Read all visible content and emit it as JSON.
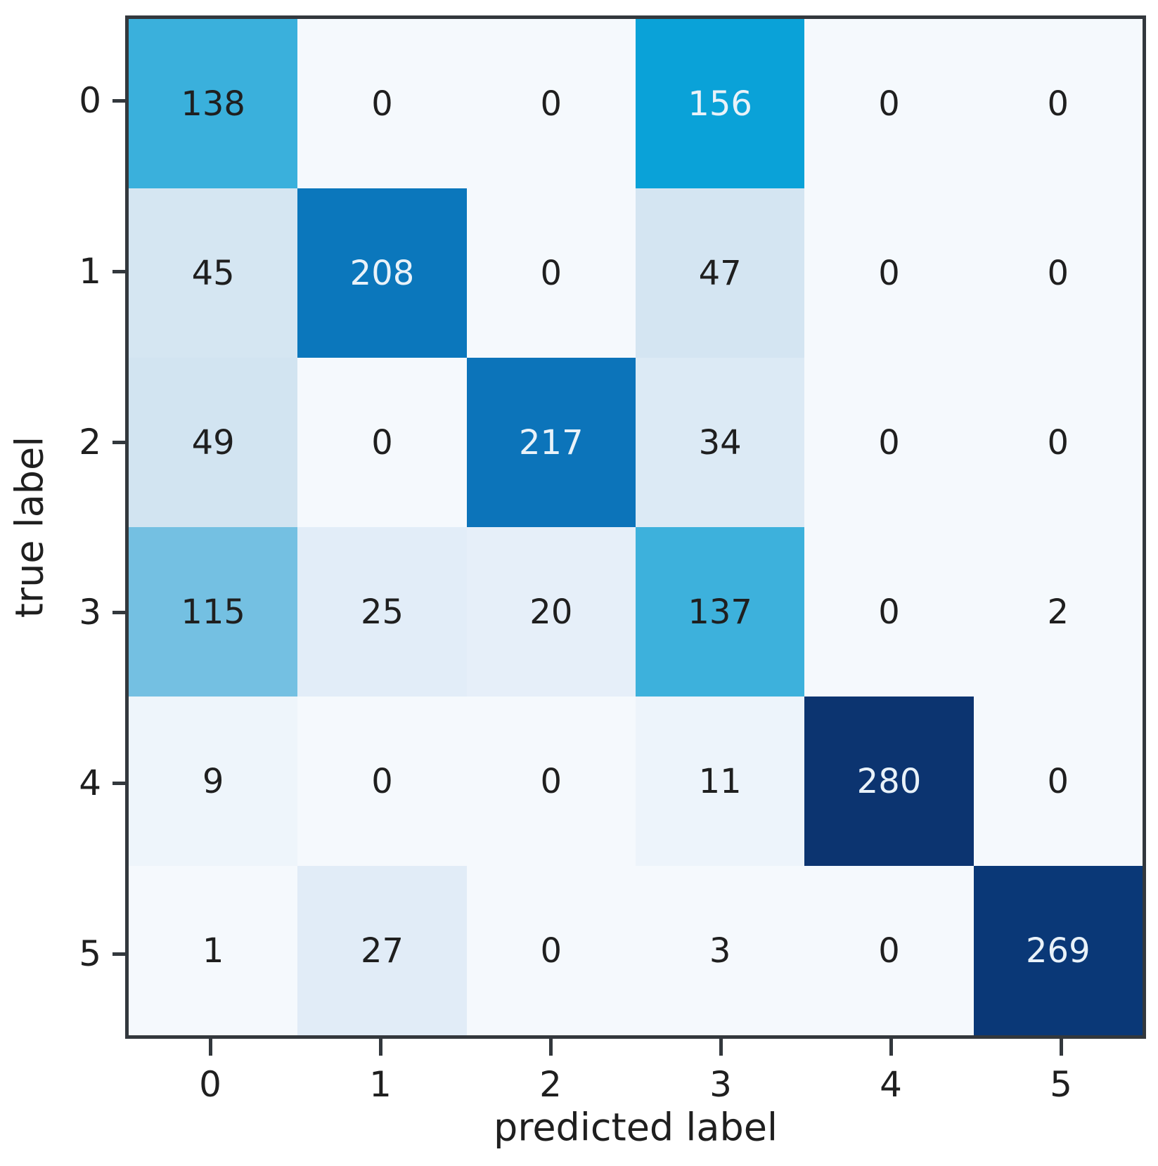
{
  "chart_data": {
    "type": "heatmap",
    "subtype": "confusion-matrix",
    "title": "",
    "xlabel": "predicted label",
    "ylabel": "true label",
    "x_tick_labels": [
      "0",
      "1",
      "2",
      "3",
      "4",
      "5"
    ],
    "y_tick_labels": [
      "0",
      "1",
      "2",
      "3",
      "4",
      "5"
    ],
    "matrix": [
      [
        138,
        0,
        0,
        156,
        0,
        0
      ],
      [
        45,
        208,
        0,
        47,
        0,
        0
      ],
      [
        49,
        0,
        217,
        34,
        0,
        0
      ],
      [
        115,
        25,
        20,
        137,
        0,
        2
      ],
      [
        9,
        0,
        0,
        11,
        280,
        0
      ],
      [
        1,
        27,
        0,
        3,
        0,
        269
      ]
    ],
    "cell_colors": [
      [
        "#3ab0dc",
        "#f5f9fd",
        "#f5f9fd",
        "#0aa2d8",
        "#f5f9fd",
        "#f5f9fd"
      ],
      [
        "#d5e6f2",
        "#0b77bc",
        "#f5f9fd",
        "#d4e5f2",
        "#f5f9fd",
        "#f5f9fd"
      ],
      [
        "#d2e4f1",
        "#f5f9fd",
        "#0c74ba",
        "#dceaf5",
        "#f5f9fd",
        "#f5f9fd"
      ],
      [
        "#74c0e2",
        "#e2edf8",
        "#e6eff9",
        "#3db1dc",
        "#f5f9fd",
        "#f5f9fd"
      ],
      [
        "#eef5fb",
        "#f5f9fd",
        "#f5f9fd",
        "#edf4fb",
        "#0c3470",
        "#f5f9fd"
      ],
      [
        "#f5f9fd",
        "#e1ecf7",
        "#f5f9fd",
        "#f5f9fd",
        "#f5f9fd",
        "#0a3877"
      ]
    ],
    "value_range": [
      0,
      280
    ],
    "text_color_threshold": 150,
    "colormap": "Blues",
    "legend": "none",
    "grid": false
  },
  "colors": {
    "frame": "#33383d",
    "dark_text": "#1f1f1f",
    "light_text": "#e9f2f9",
    "background": "#ffffff"
  }
}
